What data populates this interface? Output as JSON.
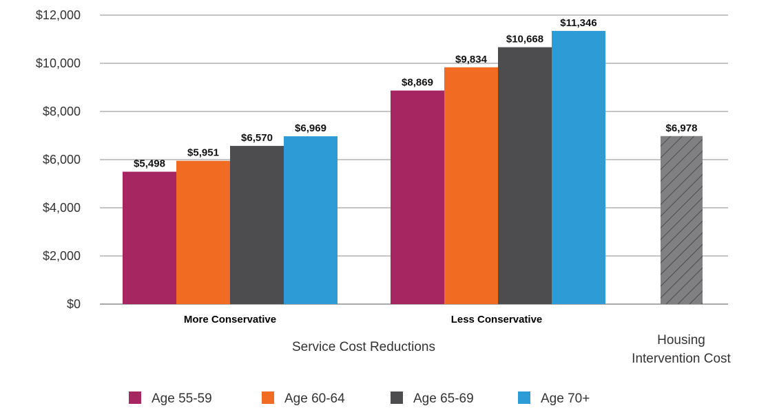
{
  "chart_data": {
    "type": "bar",
    "ylim": [
      0,
      12000
    ],
    "yticks": [
      "$0",
      "$2,000",
      "$4,000",
      "$6,000",
      "$8,000",
      "$10,000",
      "$12,000"
    ],
    "grid": true,
    "legend_position": "bottom",
    "groups": [
      {
        "label": "More Conservative",
        "values": [
          5498,
          5951,
          6570,
          6969
        ],
        "labels": [
          "$5,498",
          "$5,951",
          "$6,570",
          "$6,969"
        ]
      },
      {
        "label": "Less Conservative",
        "values": [
          8869,
          9834,
          10668,
          11346
        ],
        "labels": [
          "$8,869",
          "$9,834",
          "$10,668",
          "$11,346"
        ]
      }
    ],
    "series": [
      {
        "name": "Age 55-59",
        "color": "#A62662"
      },
      {
        "name": "Age 60-64",
        "color": "#F26B22"
      },
      {
        "name": "Age 65-69",
        "color": "#4D4D4F"
      },
      {
        "name": "Age 70+",
        "color": "#2D9BD6"
      }
    ],
    "housing": {
      "value": 6978,
      "label": "$6,978",
      "color": "#808083",
      "pattern": "diagonal-hatch"
    },
    "category_titles": {
      "service": "Service Cost Reductions",
      "housing_line1": "Housing",
      "housing_line2": "Intervention Cost"
    }
  }
}
